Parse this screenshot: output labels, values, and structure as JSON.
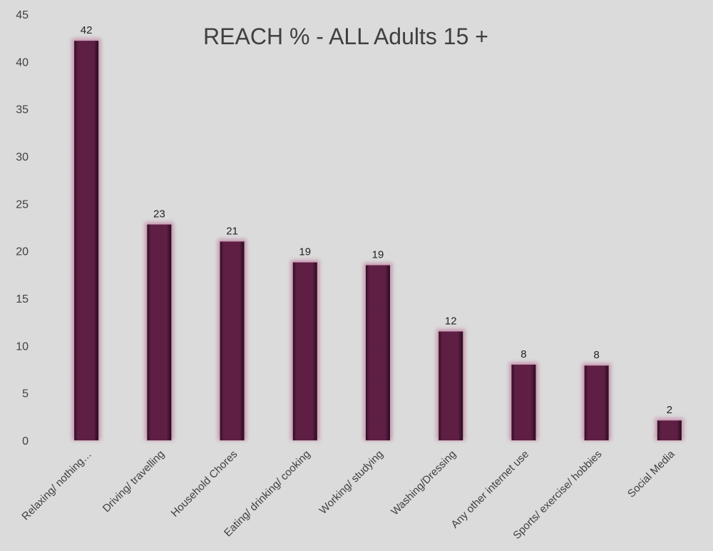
{
  "chart_data": {
    "type": "bar",
    "title": "REACH % - ALL Adults 15 +",
    "xlabel": "",
    "ylabel": "",
    "categories": [
      "Relaxing/ nothing…",
      "Driving/ travelling",
      "Household Chores",
      "Eating/ drinking/ cooking",
      "Working/ studying",
      "Washing/Dressing",
      "Any other internet use",
      "Sports/ exercise/ hobbies",
      "Social Media"
    ],
    "values": [
      42.2,
      22.8,
      21.0,
      18.8,
      18.5,
      11.5,
      8.0,
      7.9,
      2.1
    ],
    "data_labels": [
      "42",
      "23",
      "21",
      "19",
      "19",
      "12",
      "8",
      "8",
      "2"
    ],
    "y_ticks": [
      "0",
      "5",
      "10",
      "15",
      "20",
      "25",
      "30",
      "35",
      "40",
      "45"
    ],
    "ylim": [
      0,
      45
    ],
    "grid": false,
    "legend": "none",
    "colors": {
      "bar": "#5f1f45",
      "bar_glow": "#c48aa8",
      "background": "#dbdbdb",
      "text": "#404040"
    }
  }
}
